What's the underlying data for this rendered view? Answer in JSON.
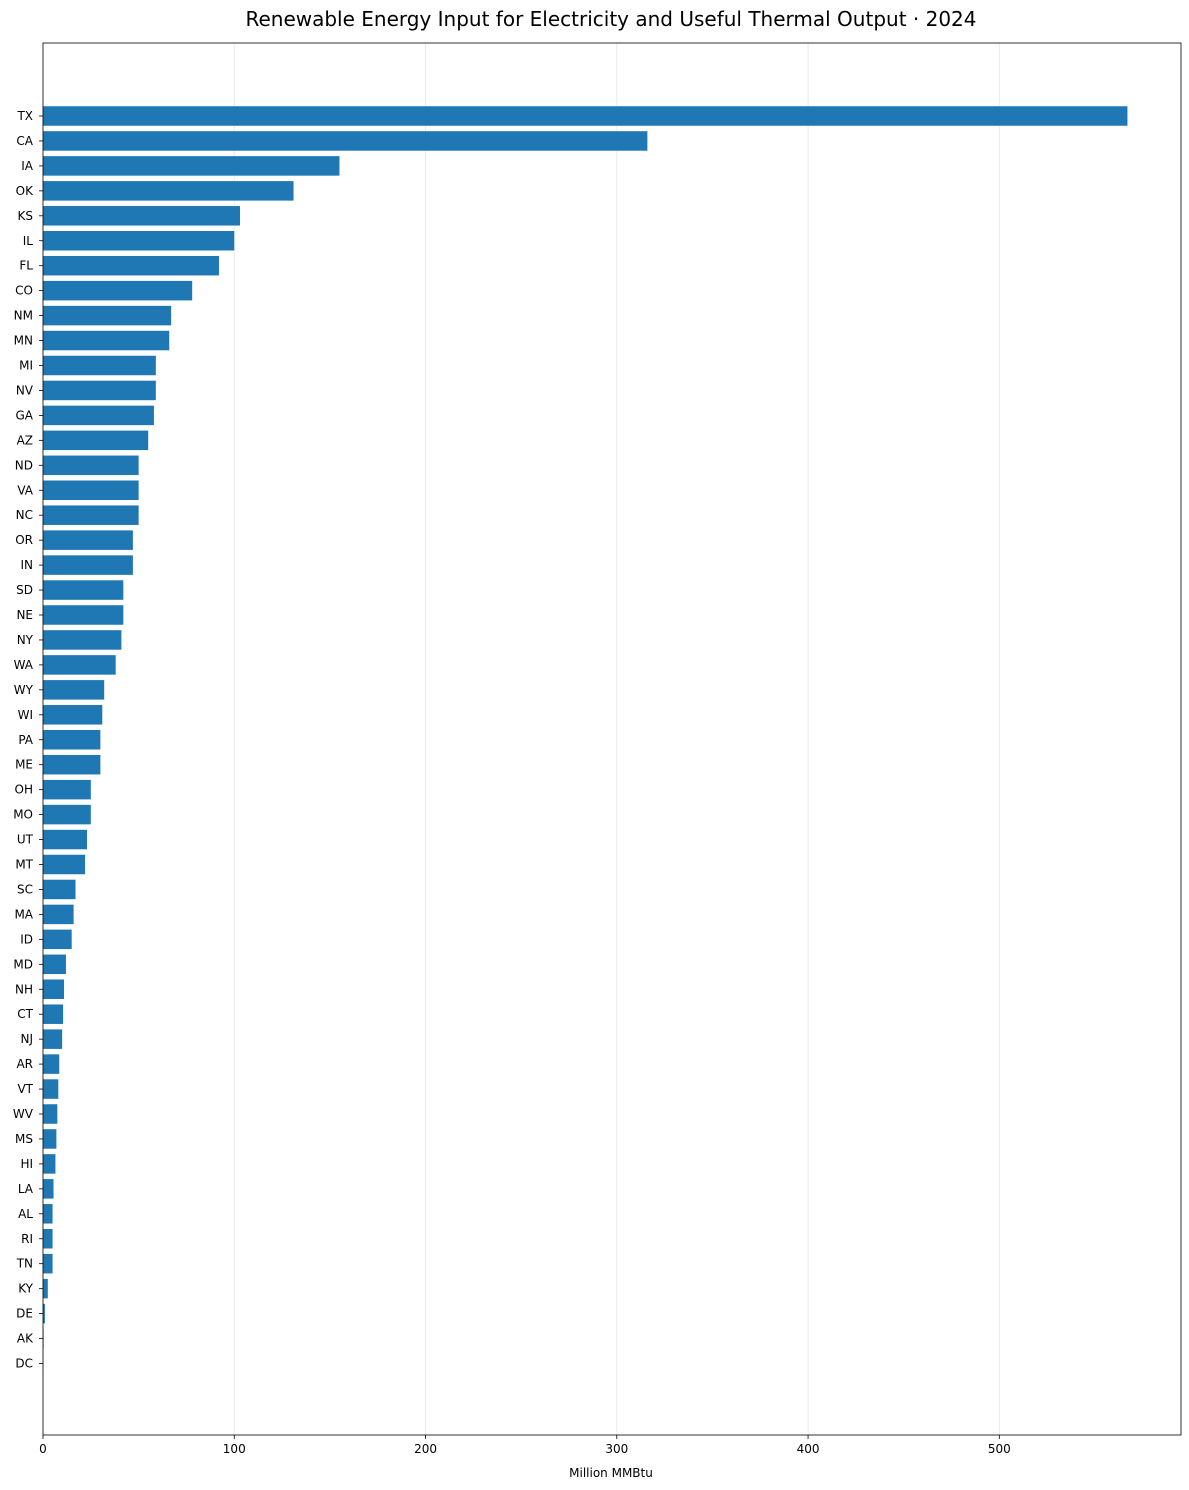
{
  "chart_data": {
    "type": "bar",
    "orientation": "horizontal",
    "title": "Renewable Energy Input for Electricity and Useful Thermal Output · 2024",
    "xlabel": "Million MMBtu",
    "ylabel": "",
    "xlim": [
      0,
      595
    ],
    "xticks": [
      0,
      100,
      200,
      300,
      400,
      500
    ],
    "grid": "vertical",
    "color": "#1f77b4",
    "categories": [
      "TX",
      "CA",
      "IA",
      "OK",
      "KS",
      "IL",
      "FL",
      "CO",
      "NM",
      "MN",
      "MI",
      "NV",
      "GA",
      "AZ",
      "ND",
      "VA",
      "NC",
      "OR",
      "IN",
      "SD",
      "NE",
      "NY",
      "WA",
      "WY",
      "WI",
      "PA",
      "ME",
      "OH",
      "MO",
      "UT",
      "MT",
      "SC",
      "MA",
      "ID",
      "MD",
      "NH",
      "CT",
      "NJ",
      "AR",
      "VT",
      "WV",
      "MS",
      "HI",
      "LA",
      "AL",
      "RI",
      "TN",
      "KY",
      "DE",
      "AK",
      "DC"
    ],
    "values": [
      567,
      316,
      155,
      131,
      103,
      100,
      92,
      78,
      67,
      66,
      59,
      59,
      58,
      55,
      50,
      50,
      50,
      47,
      47,
      42,
      42,
      41,
      38,
      32,
      31,
      30,
      30,
      25,
      25,
      23,
      22,
      17,
      16,
      15,
      12,
      11,
      10.5,
      10,
      8.5,
      8,
      7.5,
      7,
      6.5,
      5.5,
      5,
      5,
      5,
      2.5,
      1,
      0.3,
      0.1
    ]
  }
}
